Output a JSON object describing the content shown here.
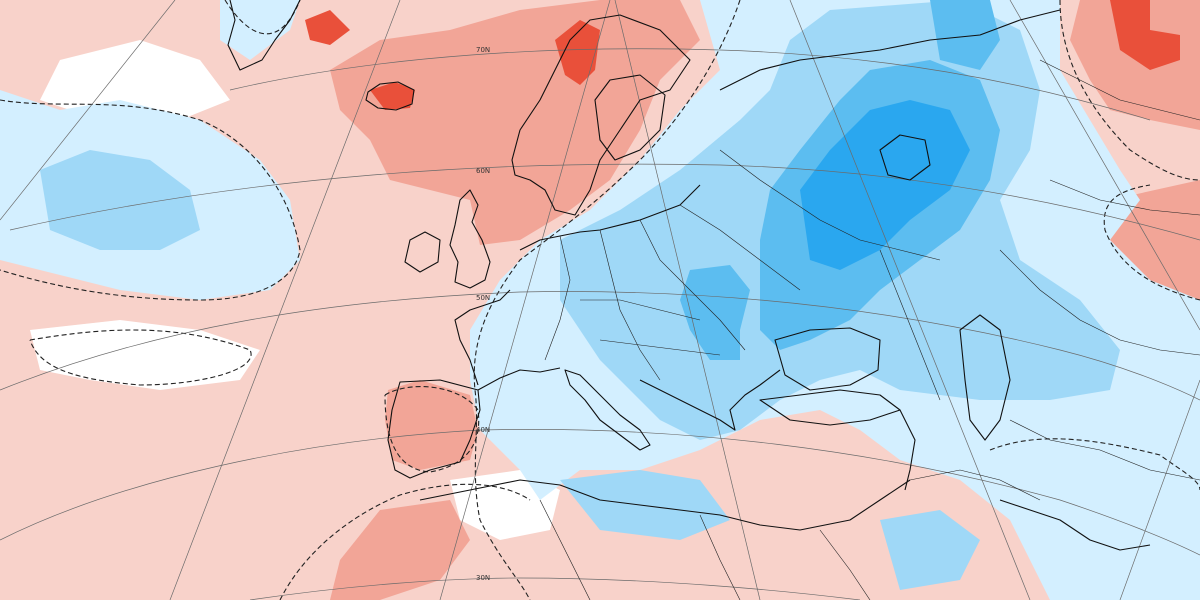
{
  "map": {
    "colors": {
      "warm_light": "#f8d2ca",
      "warm_mid": "#f2a597",
      "warm_strong": "#e9503a",
      "neutral": "#ffffff",
      "cool_light": "#d3efff",
      "cool_mid": "#9fd8f7",
      "cool_strong": "#5cbdf0",
      "cool_deep": "#2aa7ef"
    },
    "latitude_labels": [
      "70N",
      "60N",
      "50N",
      "40N",
      "30N"
    ]
  }
}
